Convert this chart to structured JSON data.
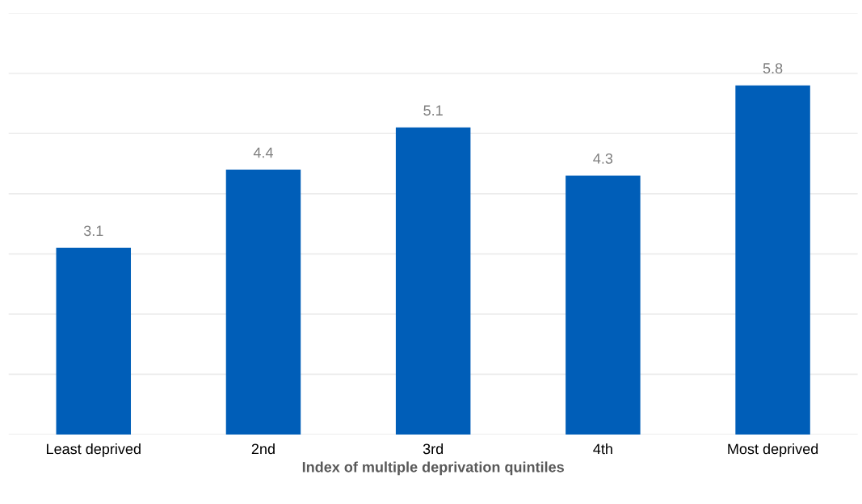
{
  "chart_data": {
    "type": "bar",
    "xlabel": "Index of multiple deprivation quintiles",
    "categories": [
      "Least deprived",
      "2nd",
      "3rd",
      "4th",
      "Most deprived"
    ],
    "values": [
      3.1,
      4.4,
      5.1,
      4.3,
      5.8
    ],
    "color": "#005eb8",
    "ylim": [
      0,
      7
    ],
    "yticks": [
      {
        "value": 0,
        "label": null
      },
      {
        "value": 1,
        "label": null
      },
      {
        "value": 2,
        "label": null
      },
      {
        "value": 3,
        "label": null
      },
      {
        "value": 4,
        "label": null
      },
      {
        "value": 5,
        "label": null
      },
      {
        "value": 6,
        "label": null
      },
      {
        "value": 7,
        "label": null
      }
    ],
    "tick_labels": "x",
    "grid": "y",
    "data_labels": true
  }
}
